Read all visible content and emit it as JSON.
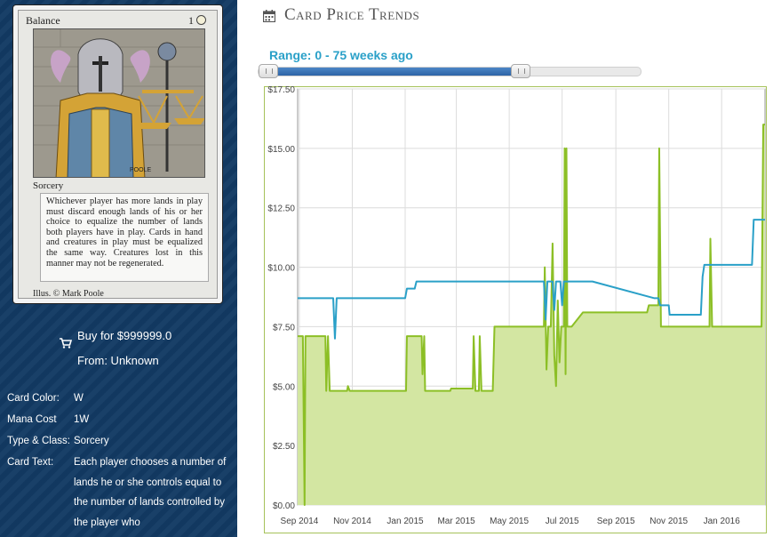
{
  "card": {
    "name": "Balance",
    "cost": "1",
    "type_line": "Sorcery",
    "rules_text": "Whichever player has more lands in play must discard enough lands of his or her choice to equalize the number of lands both players have in play. Cards in hand and creatures in play must be equalized the same way. Creatures lost in this manner may not be regenerated.",
    "artist_line": "Illus. © Mark Poole",
    "artist_sig": "POOLE"
  },
  "buy": {
    "label": "Buy for $999999.0",
    "from": "From: Unknown"
  },
  "properties": [
    {
      "key": "Card Color:",
      "value": "W"
    },
    {
      "key": "Mana Cost",
      "value": "1W"
    },
    {
      "key": "Type & Class:",
      "value": "Sorcery"
    },
    {
      "key": "Card Text:",
      "value": "Each player chooses a number of lands he or she controls equal to the number of lands controlled by the player who"
    }
  ],
  "header": {
    "title": "Card Price Trends",
    "icon": "calendar-icon"
  },
  "range": {
    "label": "Range: 0 - 75 weeks ago",
    "low_fraction": 0.0,
    "high_fraction": 0.375
  },
  "colors": {
    "sidebar_bg": "#123a63",
    "accent": "#2aa0c8",
    "series_blue": "#2aa0c8",
    "series_green": "#8cbf26",
    "green_fill": "#d3e6a2"
  },
  "chart_data": {
    "type": "line",
    "x_tick_labels": [
      "Sep 2014",
      "Nov 2014",
      "Jan 2015",
      "Mar 2015",
      "May 2015",
      "Jul 2015",
      "Sep 2015",
      "Nov 2015",
      "Jan 2016"
    ],
    "y_tick_labels": [
      "$0.00",
      "$2.50",
      "$5.00",
      "$7.50",
      "$10.00",
      "$12.50",
      "$15.00",
      "$17.50"
    ],
    "ylim": [
      0,
      17.5
    ],
    "xlim": [
      "2014-08-30",
      "2016-02-20"
    ],
    "grid": true,
    "series": [
      {
        "color": "#2aa0c8",
        "points": [
          [
            "2014-08-30",
            8.7
          ],
          [
            "2014-10-10",
            8.7
          ],
          [
            "2014-10-12",
            7.0
          ],
          [
            "2014-10-14",
            8.7
          ],
          [
            "2015-01-01",
            8.7
          ],
          [
            "2015-01-03",
            9.1
          ],
          [
            "2015-01-12",
            9.1
          ],
          [
            "2015-01-14",
            9.4
          ],
          [
            "2015-06-10",
            9.4
          ],
          [
            "2015-06-12",
            7.8
          ],
          [
            "2015-06-14",
            9.4
          ],
          [
            "2015-06-20",
            9.4
          ],
          [
            "2015-06-22",
            8.2
          ],
          [
            "2015-06-24",
            9.4
          ],
          [
            "2015-06-29",
            9.4
          ],
          [
            "2015-07-01",
            8.4
          ],
          [
            "2015-07-03",
            9.4
          ],
          [
            "2015-08-05",
            9.4
          ],
          [
            "2015-10-15",
            8.7
          ],
          [
            "2015-10-20",
            8.7
          ],
          [
            "2015-10-22",
            8.4
          ],
          [
            "2015-11-01",
            8.4
          ],
          [
            "2015-11-02",
            8.0
          ],
          [
            "2015-12-08",
            8.0
          ],
          [
            "2015-12-10",
            9.6
          ],
          [
            "2015-12-12",
            10.1
          ],
          [
            "2016-02-05",
            10.1
          ],
          [
            "2016-02-07",
            12.0
          ],
          [
            "2016-02-20",
            12.0
          ]
        ]
      },
      {
        "color": "#8cbf26",
        "area": true,
        "points": [
          [
            "2014-08-30",
            7.1
          ],
          [
            "2014-09-05",
            7.1
          ],
          [
            "2014-09-07",
            0.0
          ],
          [
            "2014-09-08",
            7.1
          ],
          [
            "2014-10-01",
            7.1
          ],
          [
            "2014-10-02",
            4.8
          ],
          [
            "2014-10-04",
            7.1
          ],
          [
            "2014-10-06",
            4.8
          ],
          [
            "2014-10-26",
            4.8
          ],
          [
            "2014-10-27",
            5.0
          ],
          [
            "2014-10-29",
            4.8
          ],
          [
            "2015-01-02",
            4.8
          ],
          [
            "2015-01-03",
            7.1
          ],
          [
            "2015-01-20",
            7.1
          ],
          [
            "2015-01-21",
            5.5
          ],
          [
            "2015-01-23",
            7.1
          ],
          [
            "2015-01-24",
            4.8
          ],
          [
            "2015-02-22",
            4.8
          ],
          [
            "2015-02-23",
            4.9
          ],
          [
            "2015-03-20",
            4.9
          ],
          [
            "2015-03-21",
            7.1
          ],
          [
            "2015-03-23",
            4.8
          ],
          [
            "2015-03-27",
            4.8
          ],
          [
            "2015-03-28",
            7.1
          ],
          [
            "2015-03-30",
            4.8
          ],
          [
            "2015-04-12",
            4.8
          ],
          [
            "2015-04-14",
            7.5
          ],
          [
            "2015-06-10",
            7.5
          ],
          [
            "2015-06-11",
            10.0
          ],
          [
            "2015-06-13",
            5.7
          ],
          [
            "2015-06-15",
            7.5
          ],
          [
            "2015-06-18",
            7.5
          ],
          [
            "2015-06-20",
            11.0
          ],
          [
            "2015-06-22",
            6.3
          ],
          [
            "2015-06-24",
            5.0
          ],
          [
            "2015-06-26",
            8.6
          ],
          [
            "2015-06-28",
            6.0
          ],
          [
            "2015-06-30",
            7.5
          ],
          [
            "2015-07-03",
            7.5
          ],
          [
            "2015-07-04",
            15.0
          ],
          [
            "2015-07-05",
            5.5
          ],
          [
            "2015-07-06",
            15.0
          ],
          [
            "2015-07-07",
            7.5
          ],
          [
            "2015-07-12",
            7.5
          ],
          [
            "2015-07-25",
            8.1
          ],
          [
            "2015-10-07",
            8.1
          ],
          [
            "2015-10-09",
            8.4
          ],
          [
            "2015-10-20",
            8.4
          ],
          [
            "2015-10-21",
            15.0
          ],
          [
            "2015-10-23",
            7.5
          ],
          [
            "2015-12-18",
            7.5
          ],
          [
            "2015-12-19",
            11.2
          ],
          [
            "2015-12-21",
            7.5
          ],
          [
            "2016-02-16",
            7.5
          ],
          [
            "2016-02-18",
            16.0
          ],
          [
            "2016-02-20",
            16.0
          ]
        ]
      }
    ]
  }
}
